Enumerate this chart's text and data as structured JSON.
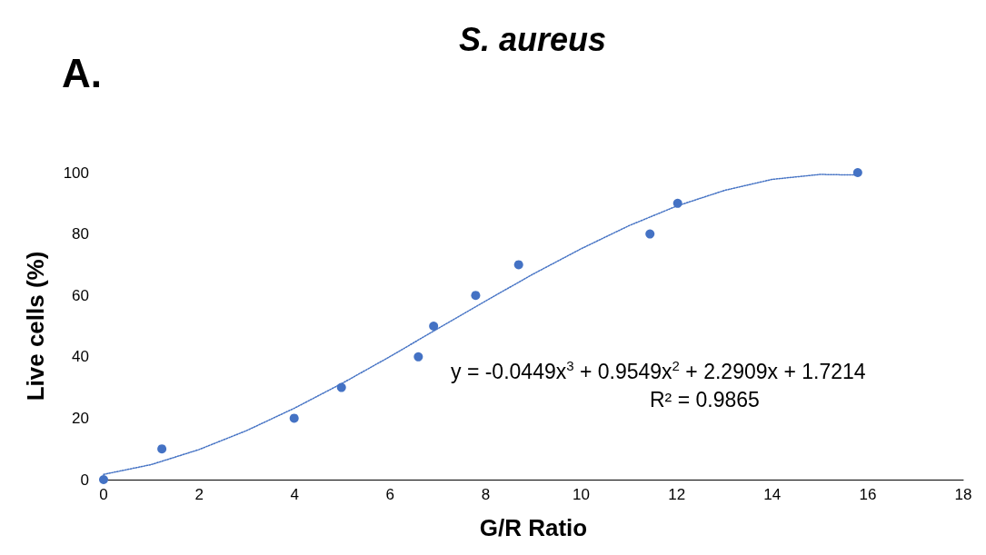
{
  "chart_data": {
    "type": "scatter",
    "title": "S. aureus",
    "xlabel": "G/R Ratio",
    "ylabel": "Live cells (%)",
    "annotations": [
      "A.",
      "y = -0.0449x$^{3}$ + 0.9549x$^{2}$ + 2.2909x + 1.7214",
      "R² = 0.9865"
    ],
    "series": [
      {
        "color": "#4472c4",
        "x": [
          0,
          1.22,
          3.99,
          4.98,
          6.59,
          6.91,
          7.79,
          8.69,
          11.44,
          12.02,
          15.79
        ],
        "values": [
          0,
          10,
          20,
          30,
          40,
          50,
          60,
          70,
          80,
          90,
          100
        ],
        "marker": "circle"
      },
      {
        "type": "line",
        "color": "#4472c4",
        "line_style": "dotted",
        "marker": "none",
        "x": [
          0,
          1,
          2,
          3,
          4,
          5,
          6,
          7,
          8,
          9,
          10,
          11,
          12,
          13,
          14,
          15,
          15.8
        ],
        "values": [
          1.7,
          4.9,
          9.8,
          16.0,
          23.3,
          31.4,
          40.1,
          49.2,
          58.2,
          67.0,
          75.2,
          82.7,
          89.1,
          94.2,
          97.8,
          99.4,
          99.2
        ]
      }
    ],
    "xlim": [
      0,
      18
    ],
    "xticks": [
      0,
      2,
      4,
      6,
      8,
      10,
      12,
      14,
      16,
      18
    ],
    "ylim": [
      0,
      100
    ],
    "yticks": [
      0,
      20,
      40,
      60,
      80,
      100
    ],
    "grid": false
  }
}
